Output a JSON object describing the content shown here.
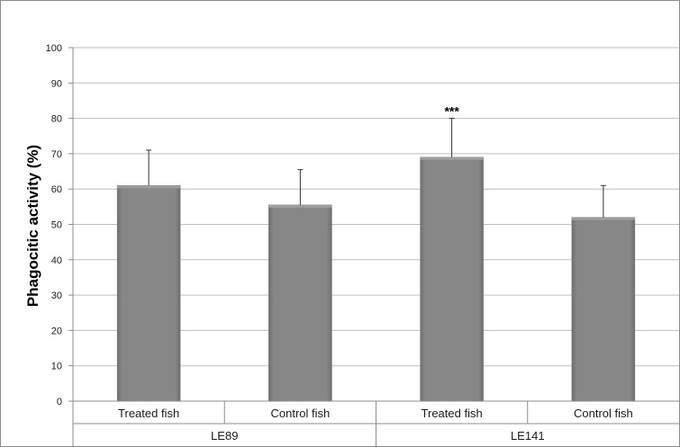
{
  "chart_data": {
    "type": "bar",
    "title": "",
    "ylabel": "Phagocitic activity (%)",
    "xlabel": "",
    "ylim": [
      0,
      100
    ],
    "yticks": [
      0,
      10,
      20,
      30,
      40,
      50,
      60,
      70,
      80,
      90,
      100
    ],
    "grid": true,
    "legend": "none",
    "categories": [
      "Treated fish",
      "Control fish",
      "Treated fish",
      "Control fish"
    ],
    "groups": [
      {
        "name": "LE89",
        "span": [
          0,
          1
        ]
      },
      {
        "name": "LE141",
        "span": [
          2,
          3
        ]
      }
    ],
    "values": [
      61,
      55.5,
      69,
      52
    ],
    "errors": [
      10,
      10,
      11,
      9
    ],
    "annotations": [
      "",
      "",
      "***",
      ""
    ],
    "colors": {
      "bar": "#878787",
      "bar_edge": "#6e6e6e",
      "grid": "#bfbfbf",
      "axis": "#8c8c8c"
    }
  }
}
